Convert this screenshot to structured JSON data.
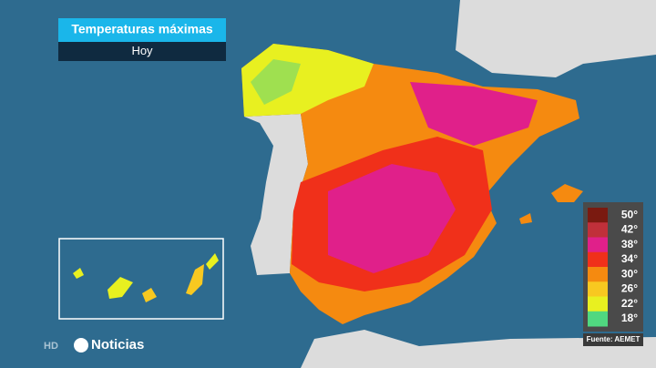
{
  "header": {
    "title": "Temperaturas máximas",
    "subtitle": "Hoy"
  },
  "legend": {
    "items": [
      {
        "label": "50°",
        "color": "#7a1a10"
      },
      {
        "label": "42°",
        "color": "#c0303a"
      },
      {
        "label": "38°",
        "color": "#e0208a"
      },
      {
        "label": "34°",
        "color": "#f0301a"
      },
      {
        "label": "30°",
        "color": "#f58a10"
      },
      {
        "label": "26°",
        "color": "#f8c820"
      },
      {
        "label": "22°",
        "color": "#e8f020"
      },
      {
        "label": "18°",
        "color": "#50d880"
      }
    ]
  },
  "source": "Fuente: AEMET",
  "footer": {
    "hd": "HD",
    "brand": "Noticias"
  }
}
